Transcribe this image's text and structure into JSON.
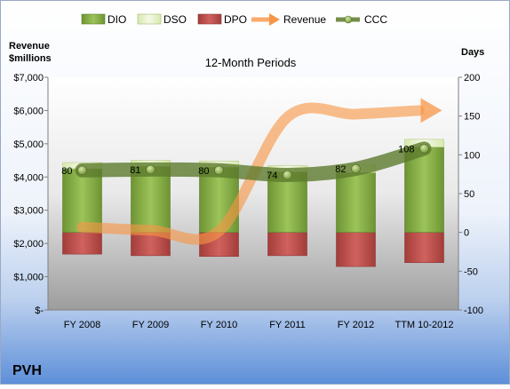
{
  "chart_data": {
    "type": "bar",
    "title": "12-Month Periods",
    "company": "PVH",
    "left_axis": {
      "label_lines": [
        "Revenue",
        "$millions"
      ],
      "min": 0,
      "max": 7000,
      "step": 1000,
      "tick_labels": [
        "$-",
        "$1,000",
        "$2,000",
        "$3,000",
        "$4,000",
        "$5,000",
        "$6,000",
        "$7,000"
      ]
    },
    "right_axis": {
      "label": "Days",
      "min": -100,
      "max": 200,
      "step": 50,
      "tick_labels": [
        "-100",
        "-50",
        "0",
        "50",
        "100",
        "150",
        "200"
      ]
    },
    "categories": [
      "FY 2008",
      "FY 2009",
      "FY 2010",
      "FY 2011",
      "FY 2012",
      "TTM 10-2012"
    ],
    "series": [
      {
        "name": "DIO",
        "kind": "bar",
        "axis": "right",
        "color": "#7fa83c",
        "values": [
          82,
          85,
          84,
          78,
          77,
          110
        ]
      },
      {
        "name": "DSO",
        "kind": "bar",
        "axis": "right",
        "color": "#e6f2c4",
        "values": [
          8,
          8,
          8,
          8,
          10,
          10
        ]
      },
      {
        "name": "DPO",
        "kind": "bar",
        "axis": "right",
        "color": "#c0504d",
        "values": [
          -28,
          -30,
          -31,
          -30,
          -44,
          -39
        ]
      },
      {
        "name": "Revenue",
        "kind": "line",
        "axis": "left",
        "color": "#f79646",
        "values": [
          2490,
          2400,
          2370,
          5800,
          5890,
          6000
        ]
      },
      {
        "name": "CCC",
        "kind": "line",
        "axis": "right",
        "color": "#5d7a2d",
        "values": [
          80,
          81,
          80,
          74,
          82,
          108
        ]
      }
    ],
    "ccc_labels": [
      "80",
      "81",
      "80",
      "74",
      "82",
      "108"
    ],
    "legend_position": "top",
    "grid": false
  }
}
